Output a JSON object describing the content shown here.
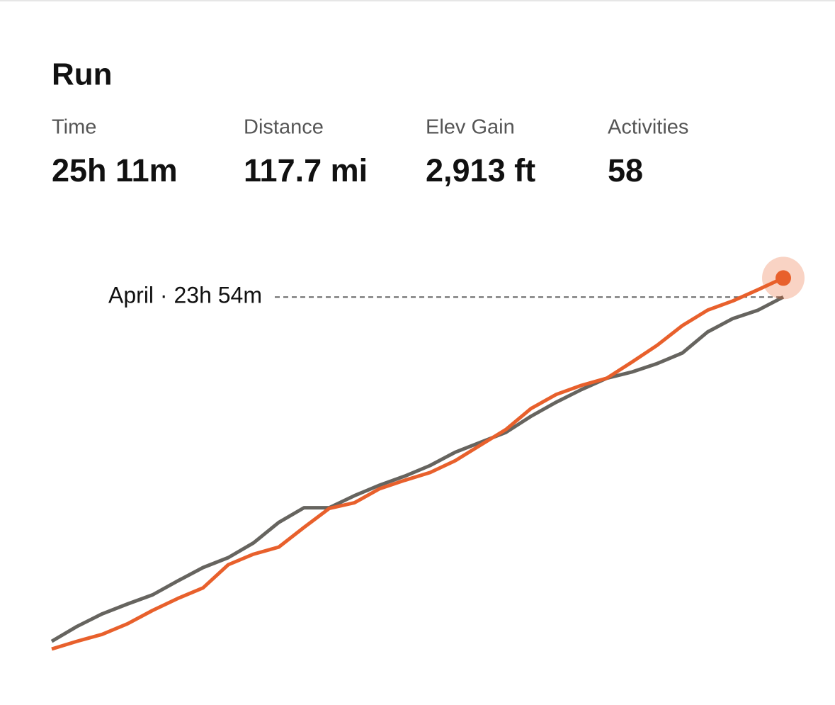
{
  "header": {
    "title": "Run"
  },
  "stats": [
    {
      "label": "Time",
      "value": "25h 11m"
    },
    {
      "label": "Distance",
      "value": "117.7 mi"
    },
    {
      "label": "Elev Gain",
      "value": "2,913 ft"
    },
    {
      "label": "Activities",
      "value": "58"
    }
  ],
  "chart_data": {
    "type": "line",
    "annotation": "April · 23h 54m",
    "ylim": [
      0,
      25.2
    ],
    "series": [
      {
        "color": "#66645f",
        "values": [
          0.71,
          1.71,
          2.56,
          3.22,
          3.84,
          4.78,
          5.68,
          6.35,
          7.34,
          8.72,
          9.71,
          9.71,
          10.52,
          11.23,
          11.84,
          12.55,
          13.45,
          14.12,
          14.78,
          15.87,
          16.82,
          17.67,
          18.43,
          18.85,
          19.42,
          20.13,
          21.55,
          22.45,
          23.02,
          23.9
        ]
      },
      {
        "color": "#e8602c",
        "values": [
          0.19,
          0.71,
          1.18,
          1.89,
          2.79,
          3.6,
          4.31,
          5.87,
          6.58,
          7.06,
          8.38,
          9.66,
          10.04,
          10.99,
          11.56,
          12.08,
          12.88,
          13.93,
          14.97,
          16.39,
          17.34,
          17.95,
          18.43,
          19.52,
          20.65,
          21.98,
          23.02,
          23.64,
          24.4,
          25.18
        ]
      }
    ]
  }
}
